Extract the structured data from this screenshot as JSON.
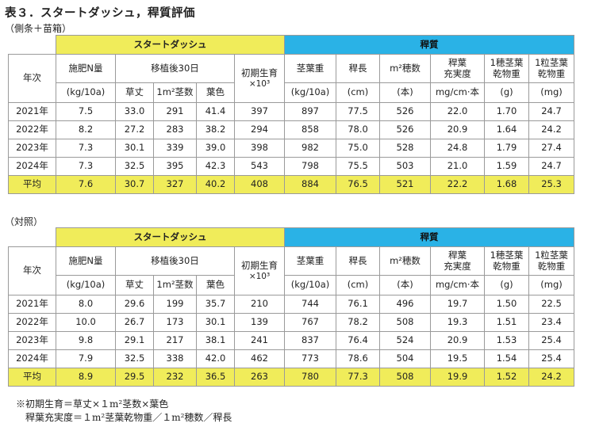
{
  "title": "表３．スタートダッシュ，稈質評価",
  "sections": [
    {
      "caption": "（側条＋苗箱）",
      "group_start_dash": "スタートダッシュ",
      "group_quality": "稈質",
      "h_year": "年次",
      "h_fert": "施肥N量",
      "h_fert_unit": "(kg/10a)",
      "h_after30": "移植後30日",
      "h_plant_height": "草丈",
      "h_stems": "1m²茎数",
      "h_leaf_color": "葉色",
      "h_initial_growth": "初期生育",
      "h_initial_growth_unit": "×10³",
      "h_stem_leaf_wt": "茎葉重",
      "h_stem_leaf_wt_unit": "(kg/10a)",
      "h_culm_len": "稈長",
      "h_culm_len_unit": "(cm)",
      "h_panicles": "m²穂数",
      "h_panicles_unit": "(本)",
      "h_culm_fill_1": "稈葉",
      "h_culm_fill_2": "充実度",
      "h_culm_fill_unit": "mg/cm·本",
      "h_per_panicle_1": "1穂茎葉",
      "h_per_panicle_2": "乾物重",
      "h_per_panicle_unit": "(g)",
      "h_per_grain_1": "1粒茎葉",
      "h_per_grain_2": "乾物重",
      "h_per_grain_unit": "(mg)",
      "rows": [
        [
          "2021年",
          "7.5",
          "33.0",
          "291",
          "41.4",
          "397",
          "897",
          "77.5",
          "526",
          "22.0",
          "1.70",
          "24.7"
        ],
        [
          "2022年",
          "8.2",
          "27.2",
          "283",
          "38.2",
          "294",
          "858",
          "78.0",
          "526",
          "20.9",
          "1.64",
          "24.2"
        ],
        [
          "2023年",
          "7.3",
          "30.1",
          "339",
          "39.0",
          "398",
          "982",
          "75.0",
          "528",
          "24.8",
          "1.79",
          "27.4"
        ],
        [
          "2024年",
          "7.3",
          "32.5",
          "395",
          "42.3",
          "543",
          "798",
          "75.5",
          "503",
          "21.0",
          "1.59",
          "24.7"
        ]
      ],
      "avg": [
        "平均",
        "7.6",
        "30.7",
        "327",
        "40.2",
        "408",
        "884",
        "76.5",
        "521",
        "22.2",
        "1.68",
        "25.3"
      ]
    },
    {
      "caption": "（対照）",
      "group_start_dash": "スタートダッシュ",
      "group_quality": "稈質",
      "h_year": "年次",
      "h_fert": "施肥N量",
      "h_fert_unit": "(kg/10a)",
      "h_after30": "移植後30日",
      "h_plant_height": "草丈",
      "h_stems": "1m²茎数",
      "h_leaf_color": "葉色",
      "h_initial_growth": "初期生育",
      "h_initial_growth_unit": "×10³",
      "h_stem_leaf_wt": "茎葉重",
      "h_stem_leaf_wt_unit": "(kg/10a)",
      "h_culm_len": "稈長",
      "h_culm_len_unit": "(cm)",
      "h_panicles": "m²穂数",
      "h_panicles_unit": "(本)",
      "h_culm_fill_1": "稈葉",
      "h_culm_fill_2": "充実度",
      "h_culm_fill_unit": "mg/cm·本",
      "h_per_panicle_1": "1穂茎葉",
      "h_per_panicle_2": "乾物重",
      "h_per_panicle_unit": "(g)",
      "h_per_grain_1": "1粒茎葉",
      "h_per_grain_2": "乾物重",
      "h_per_grain_unit": "(mg)",
      "rows": [
        [
          "2021年",
          "8.0",
          "29.6",
          "199",
          "35.7",
          "210",
          "744",
          "76.1",
          "496",
          "19.7",
          "1.50",
          "22.5"
        ],
        [
          "2022年",
          "10.0",
          "26.7",
          "173",
          "30.1",
          "139",
          "767",
          "78.2",
          "508",
          "19.3",
          "1.51",
          "23.4"
        ],
        [
          "2023年",
          "9.8",
          "29.1",
          "217",
          "38.1",
          "241",
          "837",
          "76.4",
          "524",
          "20.9",
          "1.53",
          "25.4"
        ],
        [
          "2024年",
          "7.9",
          "32.5",
          "338",
          "42.0",
          "462",
          "773",
          "78.6",
          "504",
          "19.5",
          "1.54",
          "25.4"
        ]
      ],
      "avg": [
        "平均",
        "8.9",
        "29.5",
        "232",
        "36.5",
        "263",
        "780",
        "77.3",
        "508",
        "19.9",
        "1.52",
        "24.2"
      ]
    }
  ],
  "notes": [
    "※初期生育＝草丈×１m²茎数×葉色",
    "稈葉充実度＝１m²茎葉乾物重／１m²穂数／稈長"
  ]
}
